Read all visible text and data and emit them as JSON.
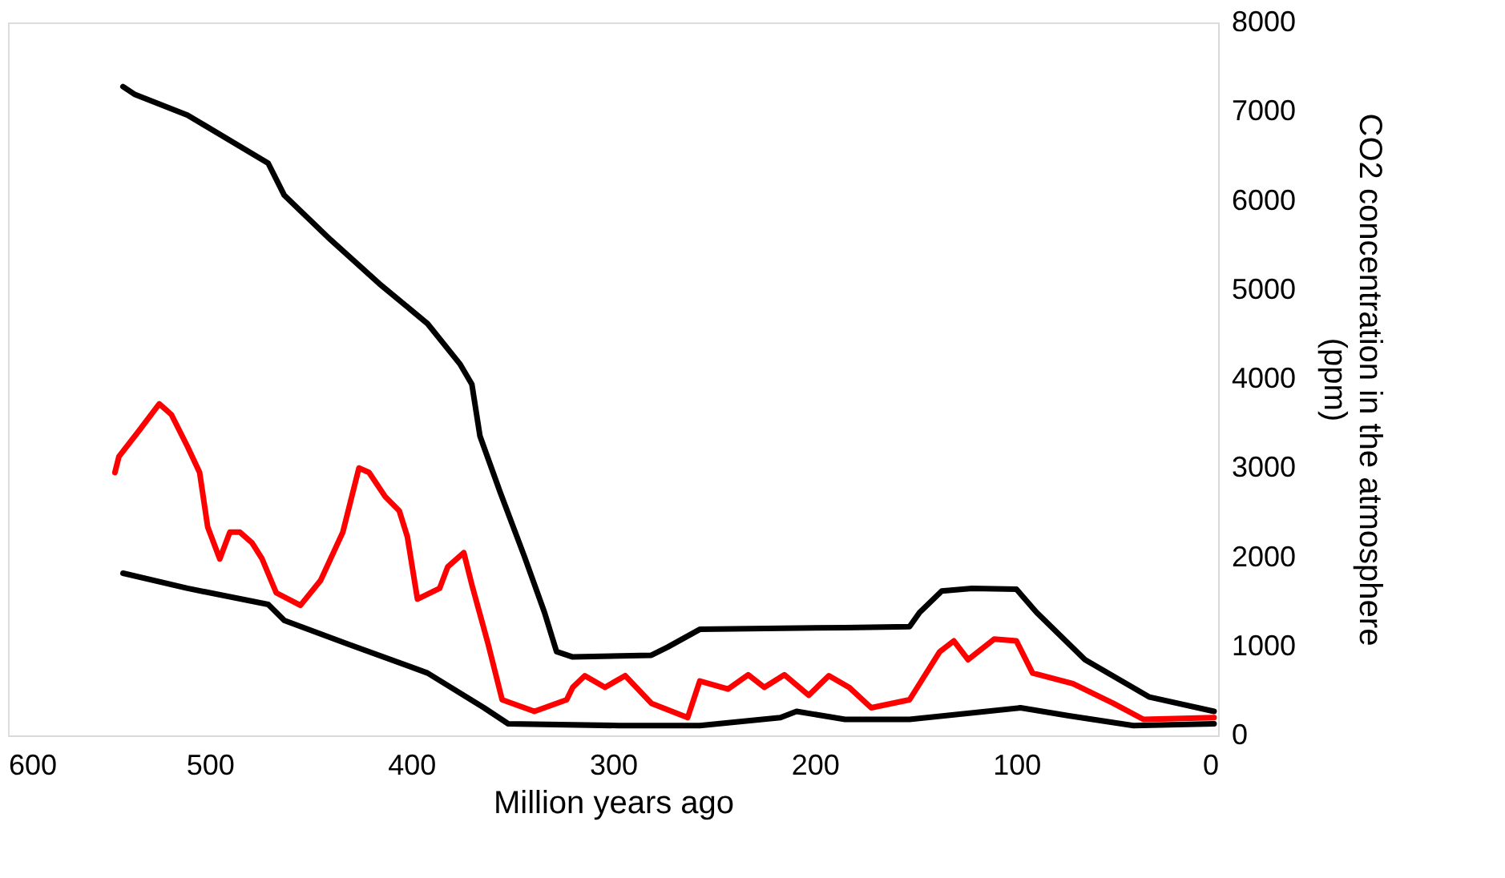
{
  "chart_data": {
    "type": "line",
    "xlabel": "Million years ago",
    "ylabel": "CO2 concentration in the atmosphere (ppm)",
    "xlim": [
      600,
      0
    ],
    "xticks": [
      600,
      500,
      400,
      300,
      200,
      100,
      0
    ],
    "ylim": [
      0,
      8000
    ],
    "yticks": [
      0,
      1000,
      2000,
      3000,
      4000,
      5000,
      6000,
      7000,
      8000
    ],
    "grid": false,
    "legend": false,
    "line_style": "solid",
    "marker": "none",
    "series": [
      {
        "color": "#000000",
        "x": [
          543,
          537,
          511,
          471,
          463,
          440,
          416,
          392,
          376,
          370,
          366,
          356,
          344,
          334,
          328,
          320,
          281,
          273,
          257,
          185,
          153,
          148,
          137,
          122,
          100,
          90,
          66,
          34,
          2
        ],
        "values": [
          7280,
          7190,
          6960,
          6420,
          6060,
          5560,
          5070,
          4620,
          4170,
          3940,
          3360,
          2730,
          2010,
          1380,
          940,
          880,
          900,
          990,
          1190,
          1210,
          1220,
          1380,
          1620,
          1650,
          1640,
          1380,
          850,
          430,
          270
        ]
      },
      {
        "color": "#000000",
        "x": [
          543,
          511,
          471,
          463,
          432,
          392,
          364,
          352,
          297,
          257,
          217,
          209,
          185,
          153,
          98,
          74,
          42,
          2
        ],
        "values": [
          1820,
          1650,
          1470,
          1290,
          1030,
          700,
          310,
          130,
          110,
          110,
          200,
          270,
          180,
          180,
          310,
          220,
          110,
          130
        ]
      },
      {
        "color": "#ff0000",
        "x": [
          547,
          545,
          535,
          525,
          519,
          511,
          505,
          501,
          495,
          490,
          485,
          479,
          474,
          467,
          455,
          445,
          434,
          426,
          421,
          413,
          406,
          402,
          397,
          386,
          382,
          374,
          370,
          362,
          355,
          339,
          323,
          320,
          314,
          304,
          294,
          281,
          263,
          257,
          243,
          233,
          225,
          215,
          203,
          193,
          183,
          172,
          153,
          138,
          131,
          124,
          111,
          100,
          92,
          72,
          52,
          37,
          2
        ],
        "values": [
          2950,
          3130,
          3420,
          3720,
          3600,
          3240,
          2950,
          2340,
          1980,
          2280,
          2280,
          2160,
          1980,
          1600,
          1460,
          1740,
          2280,
          3000,
          2950,
          2680,
          2520,
          2230,
          1530,
          1650,
          1890,
          2050,
          1690,
          1030,
          400,
          270,
          400,
          540,
          670,
          540,
          670,
          360,
          200,
          610,
          520,
          680,
          540,
          680,
          450,
          670,
          540,
          310,
          400,
          940,
          1060,
          850,
          1080,
          1060,
          700,
          580,
          360,
          180,
          200
        ]
      }
    ]
  }
}
